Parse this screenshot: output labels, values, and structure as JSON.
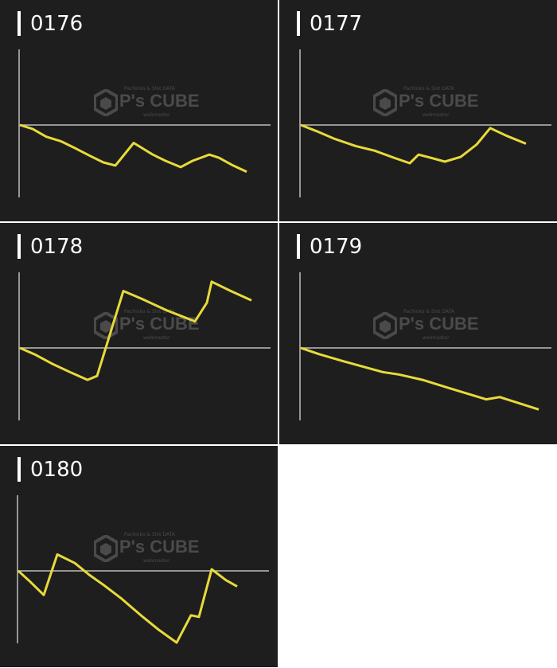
{
  "watermark": {
    "brand": "P's CUBE",
    "tagline": "Pachinko & Slot DATA",
    "sub": "webmaster"
  },
  "colors": {
    "background": "#1e1e1e",
    "line": "#e8da3a",
    "axis": "#bdbdbd",
    "title": "#ffffff"
  },
  "chart_data": [
    {
      "type": "line",
      "title": "0176",
      "xlim": [
        0,
        316
      ],
      "ylim": [
        -95,
        95
      ],
      "grid": false,
      "x": [
        1,
        17,
        34,
        53,
        71,
        88,
        106,
        121,
        144,
        168,
        184,
        203,
        218,
        239,
        251,
        269,
        286
      ],
      "y": [
        0,
        -5,
        -15,
        -21,
        -30,
        -39,
        -48,
        -52,
        -23,
        -38,
        -46,
        -54,
        -46,
        -38,
        -42,
        -52,
        -60
      ]
    },
    {
      "type": "line",
      "title": "0177",
      "xlim": [
        0,
        316
      ],
      "ylim": [
        -95,
        95
      ],
      "grid": false,
      "x": [
        1,
        21,
        44,
        70,
        94,
        118,
        138,
        149,
        164,
        182,
        202,
        222,
        239,
        260,
        284
      ],
      "y": [
        0,
        -8,
        -18,
        -27,
        -33,
        -42,
        -49,
        -38,
        -42,
        -47,
        -41,
        -25,
        -4,
        -14,
        -24
      ]
    },
    {
      "type": "line",
      "title": "0178",
      "xlim": [
        0,
        316
      ],
      "ylim": [
        -95,
        95
      ],
      "grid": false,
      "x": [
        1,
        21,
        41,
        66,
        86,
        98,
        131,
        154,
        186,
        221,
        236,
        242,
        266,
        292
      ],
      "y": [
        0,
        -9,
        -20,
        -32,
        -41,
        -36,
        73,
        63,
        48,
        34,
        58,
        85,
        73,
        61
      ]
    },
    {
      "type": "line",
      "title": "0179",
      "xlim": [
        0,
        316
      ],
      "ylim": [
        -95,
        95
      ],
      "grid": false,
      "x": [
        1,
        24,
        54,
        104,
        124,
        154,
        189,
        234,
        251,
        300
      ],
      "y": [
        0,
        -8,
        -17,
        -31,
        -34,
        -41,
        -52,
        -66,
        -63,
        -79
      ]
    },
    {
      "type": "line",
      "title": "0180",
      "xlim": [
        0,
        316
      ],
      "ylim": [
        -95,
        95
      ],
      "grid": false,
      "x": [
        1,
        16,
        33,
        50,
        72,
        90,
        108,
        130,
        155,
        178,
        200,
        218,
        228,
        244,
        262,
        276
      ],
      "y": [
        0,
        -14,
        -31,
        21,
        10,
        -5,
        -18,
        -35,
        -57,
        -76,
        -92,
        -57,
        -59,
        2,
        -12,
        -20
      ]
    }
  ]
}
